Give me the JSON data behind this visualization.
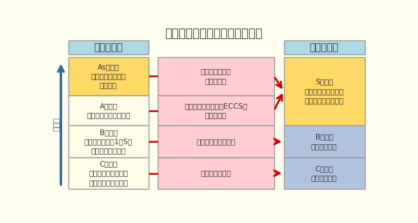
{
  "title": "耐震設計上の重要度分類の変更",
  "outer_bg": "#FFFFF0",
  "header_color": "#ADD8E6",
  "header_left_text": "旧耐震指針",
  "header_right_text": "新耐震指針",
  "left_boxes": [
    {
      "text": "Asクラス\n（安全上特に重要\nな施設）",
      "color": "#FFD966"
    },
    {
      "text": "Aクラス\n（安全上重要な施設）",
      "color": "#FFFDE7"
    },
    {
      "text": "Bクラス\n（一般建築物の1．5倍\n強度をもつ施設）",
      "color": "#FFFDE7"
    },
    {
      "text": "Cクラス\n（一般建築物と同等\nな強度を持つ施設）",
      "color": "#FFFDE7"
    }
  ],
  "middle_boxes": [
    {
      "text": "原子炉格納容器\n制御棒など"
    },
    {
      "text": "非常用炉心冷却系（ECCS）\n排気筒など"
    },
    {
      "text": "廃棄物処理設備など"
    },
    {
      "text": "上記以外の施設"
    }
  ],
  "mid_color": "#FFCDD2",
  "right_boxes": [
    {
      "text": "Sクラス\n（旧耐震指針のＡク\nラス全体を一本化）",
      "color": "#FFD966",
      "rows": 2
    },
    {
      "text": "Bクラス\n（変更なし）",
      "color": "#B0C4DE",
      "rows": 1
    },
    {
      "text": "Cクラス\n（変更なし）",
      "color": "#B0C4DE",
      "rows": 1
    }
  ],
  "arrow_red": "#CC0000",
  "arrow_blue": "#336699",
  "ylabel": "重要度",
  "border_color": "#999999",
  "text_color": "#333333"
}
